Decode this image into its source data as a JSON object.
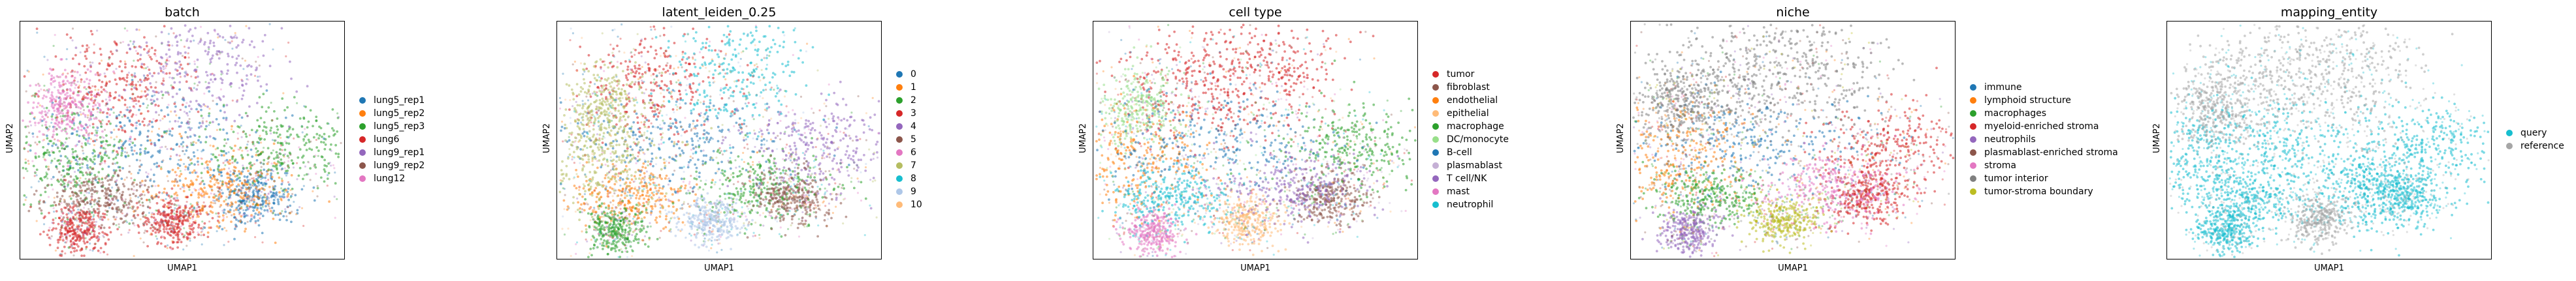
{
  "chart_data": [
    {
      "type": "scatter",
      "title": "batch",
      "xlabel": "UMAP1",
      "ylabel": "UMAP2",
      "legend_position": "right",
      "series": [
        {
          "name": "lung5_rep1",
          "color": "#1f77b4"
        },
        {
          "name": "lung5_rep2",
          "color": "#ff7f0e"
        },
        {
          "name": "lung5_rep3",
          "color": "#2ca02c"
        },
        {
          "name": "lung6",
          "color": "#d62728"
        },
        {
          "name": "lung9_rep1",
          "color": "#9467bd"
        },
        {
          "name": "lung9_rep2",
          "color": "#8c564b"
        },
        {
          "name": "lung12",
          "color": "#e377c2"
        }
      ]
    },
    {
      "type": "scatter",
      "title": "latent_leiden_0.25",
      "xlabel": "UMAP1",
      "ylabel": "UMAP2",
      "legend_position": "right",
      "series": [
        {
          "name": "0",
          "color": "#1f77b4"
        },
        {
          "name": "1",
          "color": "#ff7f0e"
        },
        {
          "name": "2",
          "color": "#2ca02c"
        },
        {
          "name": "3",
          "color": "#d62728"
        },
        {
          "name": "4",
          "color": "#9467bd"
        },
        {
          "name": "5",
          "color": "#8c564b"
        },
        {
          "name": "6",
          "color": "#e377c2"
        },
        {
          "name": "7",
          "color": "#b5bd61"
        },
        {
          "name": "8",
          "color": "#17becf"
        },
        {
          "name": "9",
          "color": "#aec7e8"
        },
        {
          "name": "10",
          "color": "#ffbb78"
        }
      ]
    },
    {
      "type": "scatter",
      "title": "cell type",
      "xlabel": "UMAP1",
      "ylabel": "UMAP2",
      "legend_position": "right",
      "series": [
        {
          "name": "tumor",
          "color": "#d62728"
        },
        {
          "name": "fibroblast",
          "color": "#8c564b"
        },
        {
          "name": "endothelial",
          "color": "#ff7f0e"
        },
        {
          "name": "epithelial",
          "color": "#ffbb78"
        },
        {
          "name": "macrophage",
          "color": "#2ca02c"
        },
        {
          "name": "DC/monocyte",
          "color": "#98df8a"
        },
        {
          "name": "B-cell",
          "color": "#1f77b4"
        },
        {
          "name": "plasmablast",
          "color": "#c5b0d5"
        },
        {
          "name": "T cell/NK",
          "color": "#9467bd"
        },
        {
          "name": "mast",
          "color": "#e377c2"
        },
        {
          "name": "neutrophil",
          "color": "#17becf"
        }
      ]
    },
    {
      "type": "scatter",
      "title": "niche",
      "xlabel": "UMAP1",
      "ylabel": "UMAP2",
      "legend_position": "right",
      "series": [
        {
          "name": "immune",
          "color": "#1f77b4"
        },
        {
          "name": "lymphoid structure",
          "color": "#ff7f0e"
        },
        {
          "name": "macrophages",
          "color": "#2ca02c"
        },
        {
          "name": "myeloid-enriched stroma",
          "color": "#d62728"
        },
        {
          "name": "neutrophils",
          "color": "#9467bd"
        },
        {
          "name": "plasmablast-enriched stroma",
          "color": "#8c564b"
        },
        {
          "name": "stroma",
          "color": "#e377c2"
        },
        {
          "name": "tumor interior",
          "color": "#7f7f7f"
        },
        {
          "name": "tumor-stroma boundary",
          "color": "#bcbd22"
        }
      ]
    },
    {
      "type": "scatter",
      "title": "mapping_entity",
      "xlabel": "UMAP1",
      "ylabel": "UMAP2",
      "legend_position": "right",
      "series": [
        {
          "name": "query",
          "color": "#17becf"
        },
        {
          "name": "reference",
          "color": "#a6a6a6"
        }
      ]
    }
  ]
}
